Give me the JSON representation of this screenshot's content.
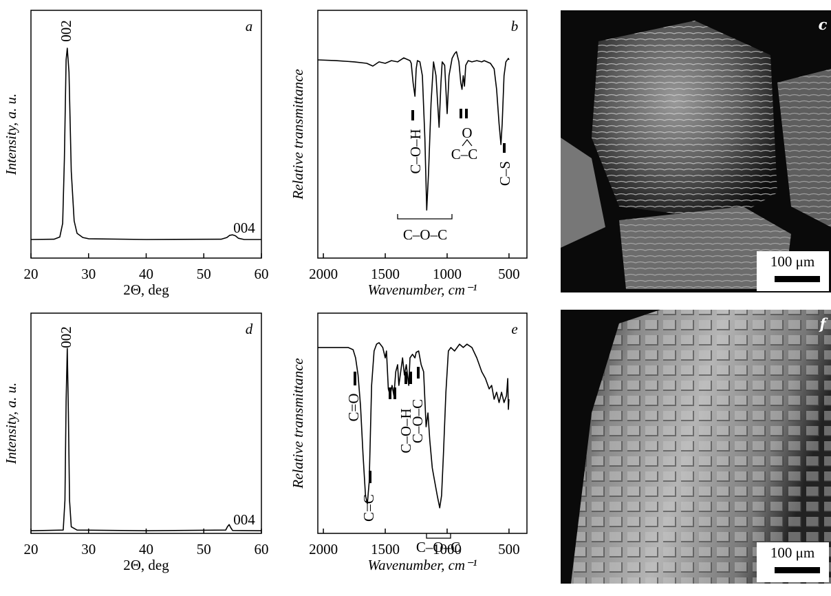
{
  "chart_data": [
    {
      "type": "line",
      "panel_label": "a",
      "ylabel": "Intensity, a. u.",
      "xlabel": "2Θ, deg",
      "xlim": [
        20,
        60
      ],
      "xticks": [
        20,
        30,
        40,
        50,
        60
      ],
      "ylim": [
        0,
        100
      ],
      "reversed_x": false,
      "color": "#000000",
      "annotations": [
        "002",
        "004"
      ],
      "x": [
        20,
        24,
        25,
        25.5,
        25.8,
        26.1,
        26.3,
        26.6,
        27,
        27.5,
        28,
        29,
        30,
        40,
        53,
        54,
        54.5,
        55,
        55.5,
        56,
        57,
        60
      ],
      "values": [
        7.5,
        7.6,
        8.5,
        14,
        40,
        80,
        84.7,
        75,
        35,
        15,
        10,
        8.3,
        7.8,
        7.5,
        7.6,
        8.3,
        9.2,
        9.4,
        9.0,
        8,
        7.5,
        7.5
      ]
    },
    {
      "type": "line",
      "panel_label": "b",
      "ylabel": "Relative transmittance",
      "xlabel": "Wavenumber, cm⁻¹",
      "xlim": [
        2045,
        355
      ],
      "xticks": [
        2000,
        1500,
        1000,
        500
      ],
      "ylim": [
        0,
        100
      ],
      "reversed_x": true,
      "color": "#000000",
      "annotations": [
        "C–O–H",
        "O",
        "C–C",
        "C–S",
        "C–O–C"
      ],
      "x": [
        2045,
        1900,
        1750,
        1650,
        1600,
        1550,
        1500,
        1450,
        1400,
        1350,
        1300,
        1290,
        1275,
        1260,
        1250,
        1240,
        1220,
        1200,
        1180,
        1165,
        1150,
        1130,
        1110,
        1090,
        1065,
        1050,
        1040,
        1020,
        1000,
        985,
        960,
        940,
        925,
        905,
        890,
        880,
        870,
        860,
        850,
        830,
        800,
        760,
        720,
        700,
        650,
        620,
        600,
        580,
        565,
        555,
        540,
        525,
        505,
        500
      ],
      "values": [
        80,
        79.7,
        79.2,
        78.6,
        77.5,
        79.2,
        78.6,
        79.7,
        79.2,
        80.8,
        79.7,
        78.6,
        70.8,
        65.3,
        76.4,
        79.7,
        79.2,
        73.6,
        48.6,
        19.4,
        34.7,
        62.5,
        79.2,
        73.6,
        52.8,
        70.8,
        79.2,
        77.8,
        58.3,
        73.6,
        80.6,
        82.5,
        83.3,
        79.2,
        70.8,
        68.1,
        73.6,
        69.4,
        77.8,
        79.7,
        79.2,
        79.7,
        79.2,
        79.7,
        78.6,
        76.4,
        68.1,
        54.2,
        45.8,
        54.2,
        73.6,
        79.2,
        80.6,
        80
      ]
    },
    {
      "type": "line",
      "panel_label": "d",
      "ylabel": "Intensity, a. u.",
      "xlabel": "2Θ, deg",
      "xlim": [
        20,
        60
      ],
      "xticks": [
        20,
        30,
        40,
        50,
        60
      ],
      "ylim": [
        0,
        100
      ],
      "reversed_x": false,
      "color": "#000000",
      "annotations": [
        "002",
        "004"
      ],
      "x": [
        20,
        25.6,
        25.9,
        26.1,
        26.3,
        26.5,
        26.7,
        27,
        28,
        40,
        53.8,
        54.1,
        54.4,
        54.7,
        55,
        60
      ],
      "values": [
        1.2,
        1.5,
        15,
        60,
        84,
        55,
        15,
        3,
        1.5,
        1.2,
        1.5,
        3,
        4,
        2.5,
        1.3,
        1.2
      ]
    },
    {
      "type": "line",
      "panel_label": "e",
      "ylabel": "Relative transmittance",
      "xlabel": "Wavenumber, cm⁻¹",
      "xlim": [
        2045,
        355
      ],
      "xticks": [
        2000,
        1500,
        1000,
        500
      ],
      "ylim": [
        0,
        100
      ],
      "reversed_x": true,
      "color": "#000000",
      "annotations": [
        "C=O",
        "C=C",
        "C–O–H",
        "C–O–C",
        "C–O–C"
      ],
      "x": [
        2045,
        1800,
        1760,
        1740,
        1720,
        1700,
        1680,
        1660,
        1645,
        1630,
        1610,
        1590,
        1570,
        1550,
        1520,
        1500,
        1490,
        1475,
        1460,
        1445,
        1430,
        1415,
        1400,
        1390,
        1375,
        1360,
        1345,
        1330,
        1310,
        1300,
        1280,
        1260,
        1250,
        1230,
        1210,
        1190,
        1170,
        1155,
        1140,
        1120,
        1100,
        1080,
        1060,
        1045,
        1030,
        1010,
        990,
        970,
        940,
        900,
        870,
        840,
        800,
        760,
        720,
        690,
        660,
        640,
        620,
        600,
        580,
        560,
        540,
        520,
        510,
        505,
        500
      ],
      "values": [
        84.4,
        84.4,
        83.4,
        79.7,
        71.9,
        57.8,
        35.9,
        17.2,
        13.4,
        23.4,
        67.2,
        82.8,
        85.9,
        86.6,
        84.4,
        79.7,
        82.8,
        65.6,
        62.5,
        67.2,
        62.5,
        73.4,
        76.6,
        67.2,
        73.4,
        79.7,
        71.9,
        76.6,
        67.2,
        79.7,
        81.3,
        79.7,
        82.2,
        82.8,
        76.6,
        73.4,
        48.4,
        54.7,
        42.2,
        29.7,
        23.4,
        17.2,
        11.6,
        17.2,
        35.9,
        64.1,
        82.8,
        84.4,
        82.8,
        85.9,
        84.4,
        85.9,
        84.4,
        79.7,
        73.4,
        70.3,
        65.6,
        67.2,
        60.9,
        64.1,
        59.4,
        64.1,
        59.4,
        62.5,
        70.3,
        56.3,
        60.9
      ]
    }
  ],
  "images": [
    {
      "panel_label": "c",
      "scale_bar": "100 μm"
    },
    {
      "panel_label": "f",
      "scale_bar": "100 μm"
    }
  ]
}
